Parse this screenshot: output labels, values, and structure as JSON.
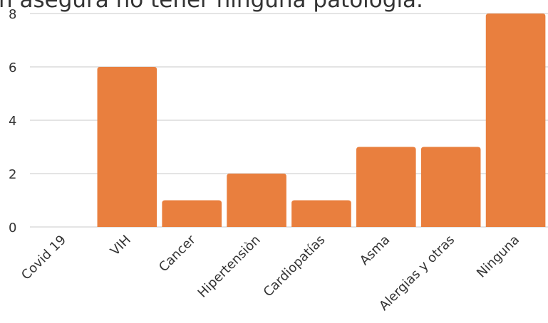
{
  "chart_data": {
    "type": "bar",
    "title": "n asegura no tener ninguna patología.",
    "categories": [
      "Covid 19",
      "VIH",
      "Cancer",
      "Hipertensiòn",
      "Cardiopatías",
      "Asma",
      "Alergias y otras",
      "Ninguna"
    ],
    "values": [
      0,
      6,
      1,
      2,
      1,
      3,
      3,
      8
    ],
    "color": "#e97f3e",
    "ylim": [
      0,
      8
    ],
    "yticks": [
      0,
      2,
      4,
      6,
      8
    ],
    "grid": true
  }
}
